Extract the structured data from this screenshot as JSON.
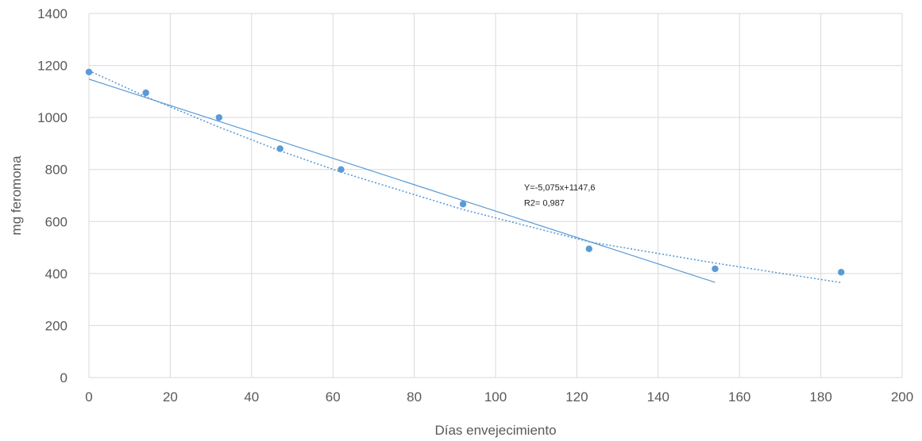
{
  "chart_data": {
    "type": "scatter",
    "title": "",
    "xlabel": "Días envejecimiento",
    "ylabel": "mg feromona",
    "xlim": [
      0,
      200
    ],
    "ylim": [
      0,
      1400
    ],
    "x_ticks": [
      0,
      20,
      40,
      60,
      80,
      100,
      120,
      140,
      160,
      180,
      200
    ],
    "y_ticks": [
      0,
      200,
      400,
      600,
      800,
      1000,
      1200,
      1400
    ],
    "grid": true,
    "legend": "none",
    "series": [
      {
        "points": [
          {
            "x": 0,
            "y": 1175
          },
          {
            "x": 14,
            "y": 1095
          },
          {
            "x": 32,
            "y": 1000
          },
          {
            "x": 47,
            "y": 880
          },
          {
            "x": 62,
            "y": 800
          },
          {
            "x": 92,
            "y": 667
          },
          {
            "x": 123,
            "y": 495
          },
          {
            "x": 154,
            "y": 418
          },
          {
            "x": 185,
            "y": 405
          }
        ],
        "color": "#5b9bd5"
      }
    ],
    "trendlines": [
      {
        "kind": "linear",
        "slope": -5.075,
        "intercept": 1147.6,
        "x_range": [
          0,
          154
        ],
        "style": "solid",
        "color": "#5b9bd5"
      },
      {
        "kind": "polynomial",
        "curve": [
          [
            0,
            1180
          ],
          [
            14,
            1080
          ],
          [
            32,
            963
          ],
          [
            47,
            872
          ],
          [
            62,
            790
          ],
          [
            92,
            646
          ],
          [
            123,
            522
          ],
          [
            154,
            440
          ],
          [
            185,
            365
          ]
        ],
        "style": "dotted",
        "color": "#5b9bd5"
      }
    ],
    "annotations": [
      {
        "text": "Y=-5,075x+1147,6",
        "x": 107,
        "y": 720
      },
      {
        "text": "R2= 0,987",
        "x": 107,
        "y": 660
      }
    ]
  }
}
